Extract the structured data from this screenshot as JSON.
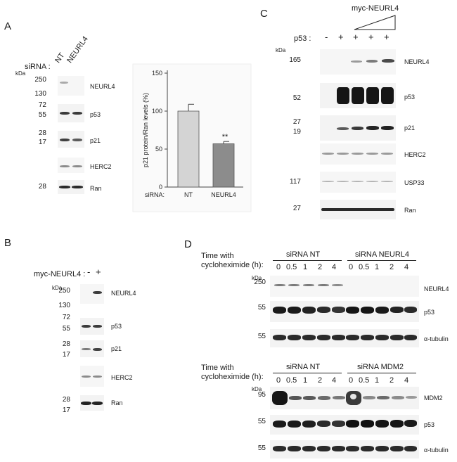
{
  "panels": {
    "A": "A",
    "B": "B",
    "C": "C",
    "D": "D"
  },
  "A": {
    "sirna_label": "siRNA :",
    "lanes": [
      "NT",
      "NEURL4"
    ],
    "kda": "kDa",
    "markers": [
      "250",
      "130",
      "72",
      "55",
      "28",
      "17",
      "28"
    ],
    "blots": [
      "NEURL4",
      "p53",
      "p21",
      "HERC2",
      "Ran"
    ],
    "chart_labels": {
      "ylabel": "p21 protein/Ran levels (%)",
      "xprefix": "siRNA:",
      "significance": "**"
    }
  },
  "B": {
    "myc_label": "myc-NEURL4 :",
    "lanes": [
      "-",
      "+"
    ],
    "kda": "kDa",
    "markers": [
      "250",
      "130",
      "72",
      "55",
      "28",
      "17",
      "28",
      "17"
    ],
    "blots": [
      "NEURL4",
      "p53",
      "p21",
      "HERC2",
      "Ran"
    ]
  },
  "C": {
    "myc_label": "myc-NEURL4",
    "p53_label": "p53 :",
    "lanes": [
      "-",
      "+",
      "+",
      "+",
      "+"
    ],
    "kda": "kDa",
    "markers": [
      "165",
      "52",
      "27",
      "19",
      "117",
      "27"
    ],
    "blots": [
      "NEURL4",
      "p53",
      "p21",
      "HERC2",
      "USP33",
      "Ran"
    ]
  },
  "D": {
    "time_label_1": "Time with",
    "time_label_2": "cycloheximide (h):",
    "top": {
      "group1": "siRNA NT",
      "group2": "siRNA NEURL4",
      "times": [
        "0",
        "0.5",
        "1",
        "2",
        "4",
        "0",
        "0.5",
        "1",
        "2",
        "4"
      ],
      "kda": "kDa",
      "markers": [
        "250",
        "55",
        "55"
      ],
      "blots": [
        "NEURL4",
        "p53",
        "α-tubulin"
      ]
    },
    "bottom": {
      "group1": "siRNA NT",
      "group2": "siRNA MDM2",
      "times": [
        "0",
        "0.5",
        "1",
        "2",
        "4",
        "0",
        "0.5",
        "1",
        "2",
        "4"
      ],
      "kda": "kDa",
      "markers": [
        "95",
        "55",
        "55"
      ],
      "blots": [
        "MDM2",
        "p53",
        "α-tubulin"
      ]
    }
  },
  "chart_data": {
    "type": "bar",
    "categories": [
      "NT",
      "NEURL4"
    ],
    "values": [
      100,
      57
    ],
    "errors": [
      9,
      3
    ],
    "ylabel": "p21 protein/Ran levels (%)",
    "xlabel": "siRNA:",
    "ylim": [
      0,
      150
    ],
    "yticks": [
      0,
      50,
      100,
      150
    ],
    "annotations": [
      "**"
    ],
    "colors": [
      "#d4d4d4",
      "#8c8c8c"
    ]
  }
}
